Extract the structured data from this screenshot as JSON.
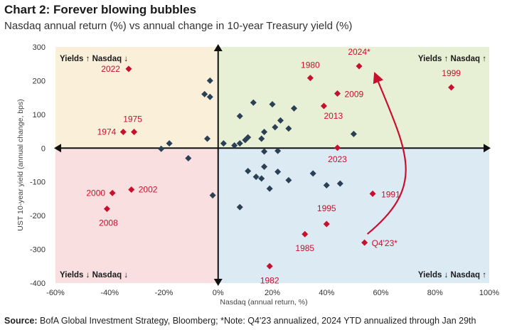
{
  "title": "Chart 2: Forever blowing bubbles",
  "subtitle": "Nasdaq annual return (%) vs annual change in 10-year Treasury yield (%)",
  "source": {
    "label": "Source:",
    "text": "BofA Global Investment Strategy, Bloomberg; *Note: Q4'23 annualized, 2024 YTD annualized through Jan 29th"
  },
  "colors": {
    "q_top_left": "#faefd9",
    "q_top_right": "#e7efd4",
    "q_bottom_left": "#f9dfe0",
    "q_bottom_right": "#dbeaf3",
    "navy": "#2b3f55",
    "red": "#c8102e"
  },
  "chart_data": {
    "type": "scatter",
    "title": "Chart 2: Forever blowing bubbles",
    "xlabel": "Nasdaq (annual return, %)",
    "ylabel": "UST 10-year yield (annual change, bps)",
    "xlim": [
      -60,
      100
    ],
    "ylim": [
      -400,
      300
    ],
    "x_ticks": [
      "-60%",
      "-40%",
      "-20%",
      "0%",
      "20%",
      "40%",
      "60%",
      "80%",
      "100%"
    ],
    "x_tick_values": [
      -60,
      -40,
      -20,
      0,
      20,
      40,
      60,
      80,
      100
    ],
    "y_ticks": [
      "300",
      "200",
      "100",
      "0",
      "-100",
      "-200",
      "-300",
      "-400"
    ],
    "y_tick_values": [
      300,
      200,
      100,
      0,
      -100,
      -200,
      -300,
      -400
    ],
    "quadrant_labels": {
      "top_left": "Yields ↑ Nasdaq ↓",
      "top_right": "Yields ↑ Nasdaq ↑",
      "bottom_left": "Yields ↓ Nasdaq ↓",
      "bottom_right": "Yields ↓ Nasdaq ↑"
    },
    "labeled_points": [
      {
        "label": "2022",
        "x": -33,
        "y": 235
      },
      {
        "label": "1975",
        "x": -31,
        "y": 48
      },
      {
        "label": "1974",
        "x": -35,
        "y": 48
      },
      {
        "label": "2000",
        "x": -39,
        "y": -133
      },
      {
        "label": "2002",
        "x": -32,
        "y": -123
      },
      {
        "label": "2008",
        "x": -41,
        "y": -180
      },
      {
        "label": "1980",
        "x": 34,
        "y": 208
      },
      {
        "label": "2024*",
        "x": 52,
        "y": 243
      },
      {
        "label": "1999",
        "x": 86,
        "y": 180
      },
      {
        "label": "2009",
        "x": 44,
        "y": 162
      },
      {
        "label": "2013",
        "x": 39,
        "y": 125
      },
      {
        "label": "2023",
        "x": 44,
        "y": 1
      },
      {
        "label": "1991",
        "x": 57,
        "y": -135
      },
      {
        "label": "1995",
        "x": 40,
        "y": -225
      },
      {
        "label": "1985",
        "x": 32,
        "y": -255
      },
      {
        "label": "Q4'23*",
        "x": 54,
        "y": -280
      },
      {
        "label": "1982",
        "x": 19,
        "y": -350
      }
    ],
    "other_points": [
      {
        "x": -3,
        "y": 200
      },
      {
        "x": -5,
        "y": 160
      },
      {
        "x": -3,
        "y": 152
      },
      {
        "x": 13,
        "y": 135
      },
      {
        "x": 20,
        "y": 130
      },
      {
        "x": 28,
        "y": 118
      },
      {
        "x": 8,
        "y": 95
      },
      {
        "x": 23,
        "y": 82
      },
      {
        "x": 21,
        "y": 62
      },
      {
        "x": 26,
        "y": 58
      },
      {
        "x": 17,
        "y": 48
      },
      {
        "x": 50,
        "y": 42
      },
      {
        "x": 11,
        "y": 32
      },
      {
        "x": -4,
        "y": 28
      },
      {
        "x": 16,
        "y": 28
      },
      {
        "x": 2,
        "y": 14
      },
      {
        "x": 8,
        "y": 14
      },
      {
        "x": 10,
        "y": 24
      },
      {
        "x": 6,
        "y": 8
      },
      {
        "x": -18,
        "y": 14
      },
      {
        "x": -21,
        "y": -2
      },
      {
        "x": -11,
        "y": -30
      },
      {
        "x": 17,
        "y": -10
      },
      {
        "x": 22,
        "y": -8
      },
      {
        "x": 11,
        "y": -68
      },
      {
        "x": 17,
        "y": -55
      },
      {
        "x": 22,
        "y": -70
      },
      {
        "x": 14,
        "y": -85
      },
      {
        "x": 16,
        "y": -90
      },
      {
        "x": 26,
        "y": -95
      },
      {
        "x": 35,
        "y": -75
      },
      {
        "x": 40,
        "y": -110
      },
      {
        "x": 45,
        "y": -105
      },
      {
        "x": 19,
        "y": -120
      },
      {
        "x": -2,
        "y": -140
      },
      {
        "x": 8,
        "y": -175
      }
    ],
    "arrow": {
      "from_label": "Q4'23*",
      "to_label": "2024*"
    }
  }
}
